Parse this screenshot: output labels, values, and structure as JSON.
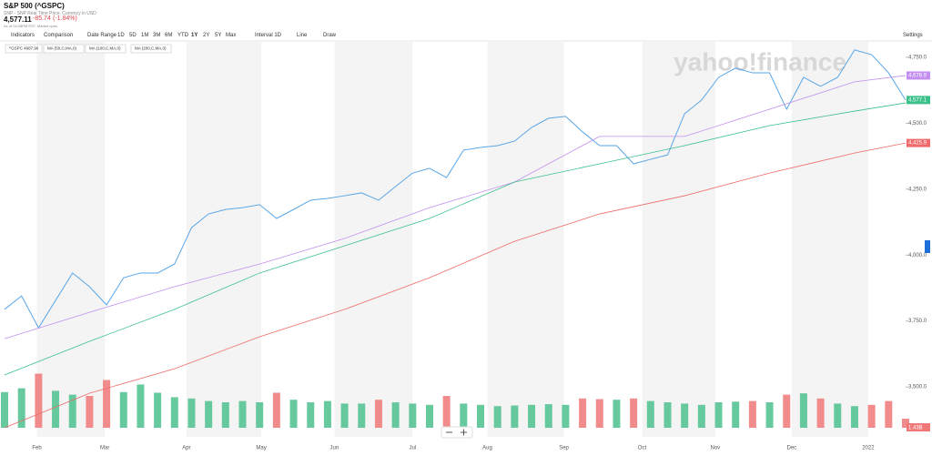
{
  "header": {
    "title": "S&P 500 (^GSPC)",
    "subtitle": "SNP - SNP Real Time Price. Currency in USD",
    "price": "4,577.11",
    "change": "-85.74",
    "change_pct": "(-1.84%)",
    "time": "As of 04:28PM EST. Market open."
  },
  "toolbar": {
    "items": [
      "Indicators",
      "Comparison",
      "Date Range",
      "1D",
      "5D",
      "1M",
      "3M",
      "6M",
      "YTD",
      "1Y",
      "2Y",
      "5Y",
      "Max",
      "Interval 1D",
      "Line",
      "Draw"
    ],
    "settings": "Settings"
  },
  "legend": [
    "^GSPC 4687.96",
    "MA (50,C,MA,0)",
    "MA (100,C,MA,0)",
    "MA (200,C,MA,0)"
  ],
  "watermark": "yahoo!finance",
  "chart_data": {
    "type": "line",
    "xlim": [
      0,
      53
    ],
    "xticks": [
      {
        "value": 1.9,
        "label": "Feb"
      },
      {
        "value": 5.9,
        "label": "Mar"
      },
      {
        "value": 10.7,
        "label": "Apr"
      },
      {
        "value": 15.1,
        "label": "May"
      },
      {
        "value": 19.4,
        "label": "Jun"
      },
      {
        "value": 24,
        "label": "Jul"
      },
      {
        "value": 28.4,
        "label": "Aug"
      },
      {
        "value": 32.9,
        "label": "Sep"
      },
      {
        "value": 37.5,
        "label": "Oct"
      },
      {
        "value": 41.8,
        "label": "Nov"
      },
      {
        "value": 46.3,
        "label": "Dec"
      },
      {
        "value": 50.8,
        "label": "2022"
      }
    ],
    "ylim": [
      3345,
      4812
    ],
    "yticks": [
      {
        "value": 3500,
        "label": "3,500.0"
      },
      {
        "value": 3750,
        "label": "3,750.0"
      },
      {
        "value": 4000,
        "label": "4,000.0"
      },
      {
        "value": 4250,
        "label": "4,250.0"
      },
      {
        "value": 4500,
        "label": "4,500.0"
      },
      {
        "value": 4750,
        "label": "4,750.0"
      }
    ],
    "series": [
      {
        "name": "^GSPC",
        "color": "#5aa6e6",
        "x": [
          0,
          1,
          2,
          3,
          4,
          5,
          6,
          7,
          8,
          9,
          10,
          11,
          12,
          13,
          14,
          15,
          16,
          17,
          18,
          19,
          20,
          21,
          22,
          23,
          24,
          25,
          26,
          27,
          28,
          29,
          30,
          31,
          32,
          33,
          34,
          35,
          36,
          37,
          38,
          39,
          40,
          41,
          42,
          43,
          44,
          45,
          46,
          47,
          48,
          49,
          50,
          51,
          52,
          53
        ],
        "values": [
          3794,
          3845,
          3724,
          3828,
          3932,
          3880,
          3811,
          3914,
          3932,
          3932,
          3966,
          4104,
          4156,
          4173,
          4180,
          4191,
          4139,
          4173,
          4208,
          4215,
          4225,
          4236,
          4208,
          4260,
          4311,
          4329,
          4294,
          4398,
          4408,
          4415,
          4432,
          4484,
          4519,
          4526,
          4467,
          4415,
          4415,
          4346,
          4363,
          4380,
          4536,
          4588,
          4674,
          4709,
          4691,
          4691,
          4553,
          4674,
          4640,
          4674,
          4778,
          4760,
          4691,
          4588
        ]
      },
      {
        "name": "MA (50,C,MA,0)",
        "color": "#c38ef0",
        "x": [
          0,
          5,
          10,
          15,
          20,
          25,
          30,
          35,
          40,
          45,
          50,
          53
        ],
        "values": [
          3683,
          3783,
          3880,
          3966,
          4063,
          4180,
          4277,
          4450,
          4450,
          4553,
          4657,
          4681
        ]
      },
      {
        "name": "MA (100,C,MA,0)",
        "color": "#3cc08a",
        "x": [
          0,
          5,
          10,
          15,
          20,
          25,
          30,
          35,
          40,
          45,
          50,
          53
        ],
        "values": [
          3545,
          3673,
          3794,
          3932,
          4035,
          4139,
          4277,
          4346,
          4415,
          4491,
          4546,
          4577
        ]
      },
      {
        "name": "MA (200,C,MA,0)",
        "color": "#ef6a6a",
        "x": [
          0,
          5,
          10,
          15,
          20,
          25,
          30,
          35,
          40,
          45,
          50,
          53
        ],
        "values": [
          3345,
          3476,
          3569,
          3690,
          3794,
          3914,
          4052,
          4156,
          4225,
          4311,
          4387,
          4425
        ]
      }
    ],
    "end_labels": [
      "4,678.9",
      "4,577.1",
      "4,425.9"
    ],
    "volume": {
      "ylim": [
        0,
        10
      ],
      "up_color": "#4cc08d",
      "down_color": "#f07878",
      "last_label": "1.43B",
      "values": [
        5.6,
        6.2,
        8.5,
        5.8,
        5.2,
        5.0,
        7.5,
        5.6,
        6.8,
        5.5,
        4.8,
        4.6,
        4.2,
        4.0,
        4.2,
        4.0,
        5.5,
        4.4,
        4.0,
        4.2,
        3.8,
        3.8,
        4.4,
        4.0,
        3.8,
        3.6,
        5.0,
        3.8,
        3.6,
        3.4,
        3.5,
        3.6,
        3.7,
        3.6,
        4.6,
        4.5,
        4.4,
        4.6,
        4.2,
        4.0,
        3.8,
        3.6,
        4.0,
        4.1,
        4.2,
        4.0,
        5.2,
        5.4,
        4.6,
        3.8,
        3.4,
        3.6,
        4.2,
        1.43
      ]
    }
  }
}
